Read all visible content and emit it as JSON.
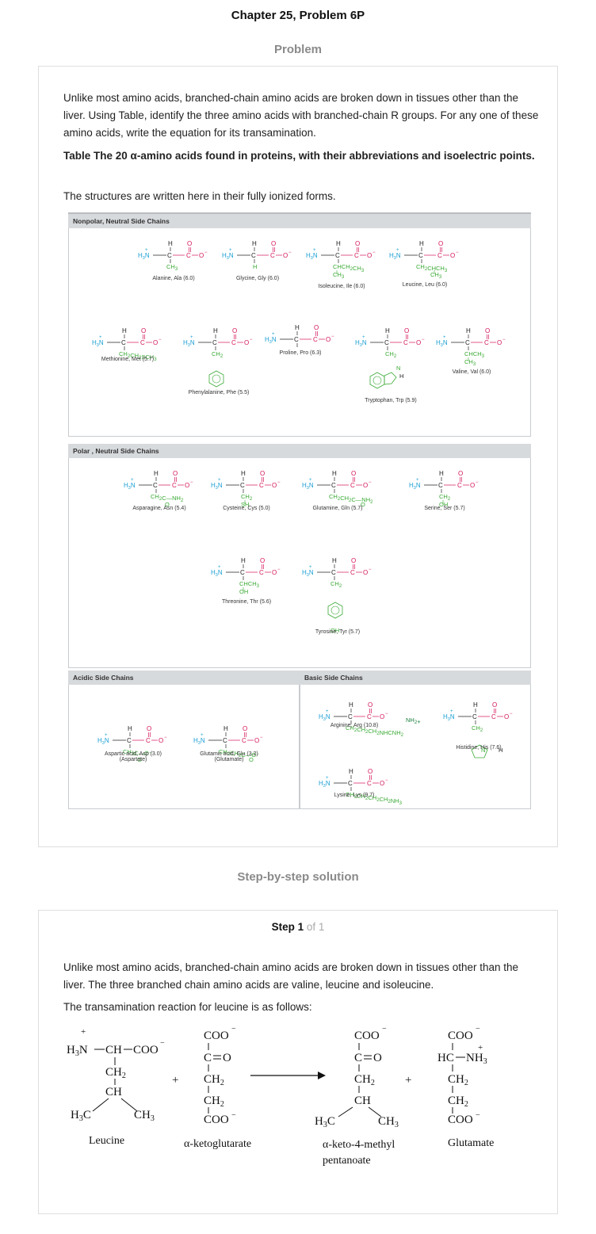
{
  "page": {
    "title": "Chapter 25, Problem 6P",
    "problem_heading": "Problem",
    "solution_heading": "Step-by-step solution"
  },
  "problem": {
    "intro": "Unlike most amino acids, branched-chain amino acids are broken down in tissues other than the liver. Using Table, identify the three amino acids with branched-chain R groups. For any one of these amino acids, write the equation for its transamination.",
    "table_title": "Table The 20 α-amino acids found in proteins, with their abbreviations and isoelectric points.",
    "table_note": "The structures are written here in their fully ionized forms."
  },
  "figure": {
    "panels": {
      "nonpolar": "Nonpolar, Neutral Side Chains",
      "polar": "Polar , Neutral Side Chains",
      "acidic": "Acidic Side Chains",
      "basic": "Basic Side Chains"
    },
    "amino_acids": {
      "ala": {
        "name": "Alanine, Ala (6.0)",
        "side": [
          "CH3"
        ]
      },
      "gly": {
        "name": "Glycine, Gly (6.0)",
        "side": [
          "H"
        ]
      },
      "ile": {
        "name": "Isoleucine, Ile (6.0)",
        "side": [
          "CHCH2CH3",
          "CH3"
        ]
      },
      "leu": {
        "name": "Leucine, Leu (6.0)",
        "side": [
          "CH2CHCH3",
          "CH3"
        ]
      },
      "met": {
        "name": "Methionine, Met (5.7)",
        "side": [
          "CH2CH2SCH3"
        ]
      },
      "phe": {
        "name": "Phenylalanine, Phe (5.5)",
        "side": [
          "CH2"
        ]
      },
      "pro": {
        "name": "Proline, Pro (6.3)",
        "side": []
      },
      "trp": {
        "name": "Tryptophan, Trp (5.9)",
        "side": [
          "CH2",
          "N",
          "H"
        ]
      },
      "val": {
        "name": "Valine, Val (6.0)",
        "side": [
          "CHCH3",
          "CH3"
        ]
      },
      "asn": {
        "name": "Asparagine, Asn (5.4)",
        "side": [
          "CH2C—NH2",
          "O"
        ]
      },
      "cys": {
        "name": "Cysteine, Cys (5.0)",
        "side": [
          "CH2",
          "SH"
        ]
      },
      "gln": {
        "name": "Glutamine, Gln (5.7)",
        "side": [
          "CH2CH2C—NH2",
          "O"
        ]
      },
      "ser": {
        "name": "Serine, Ser (5.7)",
        "side": [
          "CH2",
          "OH"
        ]
      },
      "thr": {
        "name": "Threonine, Thr (5.6)",
        "side": [
          "CHCH3",
          "OH"
        ]
      },
      "tyr": {
        "name": "Tyrosine, Tyr (5.7)",
        "side": [
          "CH2",
          "OH"
        ]
      },
      "asp": {
        "name": "Aspartic acid, Asp (3.0)",
        "name2": "(Aspartate)",
        "side": [
          "CH2C—O⁻",
          "O"
        ]
      },
      "glu": {
        "name": "Glutamic acid, Glu (3.2)",
        "name2": "(Glutamate)",
        "side": [
          "CH2CH2C—O⁻",
          "O"
        ]
      },
      "arg": {
        "name": "Arginine, Arg (10.8)",
        "side": [
          "CH2CH2CH2NHCNH2",
          "NH2+"
        ]
      },
      "his": {
        "name": "Histidine, His (7.6)",
        "side": [
          "CH2",
          "N",
          "H"
        ]
      },
      "lys": {
        "name": "Lysine, Lys (9.7)",
        "side": [
          "CH2CH2CH2CH2NH3"
        ]
      }
    }
  },
  "solution": {
    "step_word": "Step",
    "step_num": "1",
    "step_of": "of 1",
    "text1": "Unlike most amino acids, branched-chain amino acids are broken down in tissues other than the liver. The three branched chain amino acids are valine, leucine and isoleucine.",
    "text2": "The transamination reaction for leucine is as follows:",
    "labels": {
      "leucine": "Leucine",
      "akg": "α-ketoglutarate",
      "akm_line1": "α-keto-4-methyl",
      "akm_line2": "pentanoate",
      "glutamate": "Glutamate"
    }
  },
  "colors": {
    "nh3": "#1a9fd4",
    "carbonyl": "#d4145a",
    "ring": "#3aaa35",
    "side_chain": "#3aaa35"
  }
}
